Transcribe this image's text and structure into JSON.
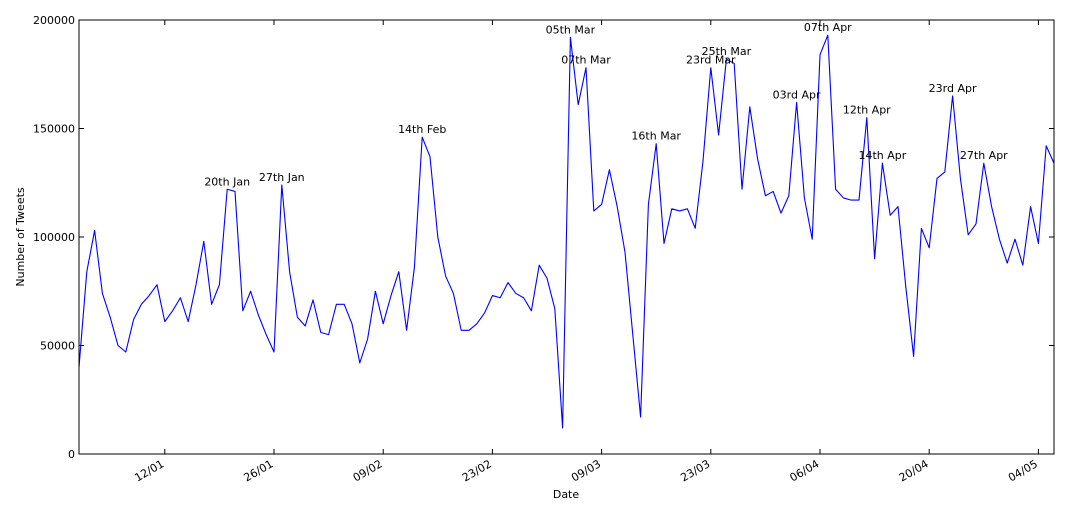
{
  "chart_data": {
    "type": "line",
    "x_label": "Date",
    "y_label": "Number of Tweets",
    "color": "#0000ff",
    "x": [
      1,
      2,
      3,
      4,
      5,
      6,
      7,
      8,
      9,
      10,
      11,
      12,
      13,
      14,
      15,
      16,
      17,
      18,
      19,
      20,
      21,
      22,
      23,
      24,
      25,
      26,
      27,
      28,
      29,
      30,
      31,
      32,
      33,
      34,
      35,
      36,
      37,
      38,
      39,
      40,
      41,
      42,
      43,
      44,
      45,
      46,
      47,
      48,
      49,
      50,
      51,
      52,
      53,
      54,
      55,
      56,
      57,
      58,
      59,
      60,
      61,
      62,
      63,
      64,
      65,
      66,
      67,
      68,
      69,
      70,
      71,
      72,
      73,
      74,
      75,
      76,
      77,
      78,
      79,
      80,
      81,
      82,
      83,
      84,
      85,
      86,
      87,
      88,
      89,
      90,
      91,
      92,
      93,
      94,
      95,
      96,
      97,
      98,
      99,
      100,
      101,
      102,
      103,
      104,
      105,
      106,
      107,
      108,
      109,
      110,
      111,
      112,
      113,
      114,
      115,
      116,
      117,
      118,
      119,
      120,
      121,
      122,
      123,
      124,
      125,
      126
    ],
    "values": [
      40000,
      84000,
      103000,
      74000,
      63000,
      50000,
      47000,
      62000,
      69000,
      73000,
      78000,
      61000,
      66000,
      72000,
      61000,
      78000,
      98000,
      69000,
      78000,
      122000,
      121000,
      66000,
      75000,
      64000,
      55000,
      47000,
      124000,
      84000,
      63000,
      59000,
      71000,
      56000,
      55000,
      69000,
      69000,
      60000,
      42000,
      53000,
      75000,
      60000,
      73000,
      84000,
      57000,
      86000,
      146000,
      137000,
      100000,
      82000,
      74000,
      57000,
      57000,
      60000,
      65000,
      73000,
      72000,
      79000,
      74000,
      72000,
      66000,
      87000,
      81000,
      67000,
      12000,
      192000,
      161000,
      178000,
      112000,
      115000,
      131000,
      114000,
      93000,
      55000,
      17000,
      115000,
      143000,
      97000,
      113000,
      112000,
      113000,
      104000,
      135000,
      178000,
      147000,
      182000,
      180000,
      122000,
      160000,
      136000,
      119000,
      121000,
      111000,
      119000,
      162000,
      118000,
      99000,
      184000,
      193000,
      122000,
      118000,
      117000,
      117000,
      155000,
      90000,
      134000,
      110000,
      114000,
      77000,
      45000,
      104000,
      95000,
      127000,
      130000,
      165000,
      127000,
      101000,
      106000,
      134000,
      114000,
      99000,
      88000,
      99000,
      87000,
      114000,
      97000,
      142000,
      134000
    ],
    "xlim": [
      1,
      126
    ],
    "xticks": [
      {
        "value": 12,
        "label": "12/01"
      },
      {
        "value": 26,
        "label": "26/01"
      },
      {
        "value": 40,
        "label": "09/02"
      },
      {
        "value": 54,
        "label": "23/02"
      },
      {
        "value": 68,
        "label": "09/03"
      },
      {
        "value": 82,
        "label": "23/03"
      },
      {
        "value": 96,
        "label": "06/04"
      },
      {
        "value": 110,
        "label": "20/04"
      },
      {
        "value": 124,
        "label": "04/05"
      }
    ],
    "ylim": [
      0,
      200000
    ],
    "yticks": [
      0,
      50000,
      100000,
      150000,
      200000
    ],
    "annotations": [
      {
        "text": "20th Jan",
        "x": 20
      },
      {
        "text": "27th Jan",
        "x": 27
      },
      {
        "text": "14th Feb",
        "x": 45
      },
      {
        "text": "05th Mar",
        "x": 64
      },
      {
        "text": "07th Mar",
        "x": 66
      },
      {
        "text": "16th Mar",
        "x": 75
      },
      {
        "text": "23rd Mar",
        "x": 82
      },
      {
        "text": "25th Mar",
        "x": 84
      },
      {
        "text": "03rd Apr",
        "x": 93
      },
      {
        "text": "07th Apr",
        "x": 97
      },
      {
        "text": "12th Apr",
        "x": 102
      },
      {
        "text": "14th Apr",
        "x": 104
      },
      {
        "text": "23rd Apr",
        "x": 113
      },
      {
        "text": "27th Apr",
        "x": 117
      }
    ]
  }
}
